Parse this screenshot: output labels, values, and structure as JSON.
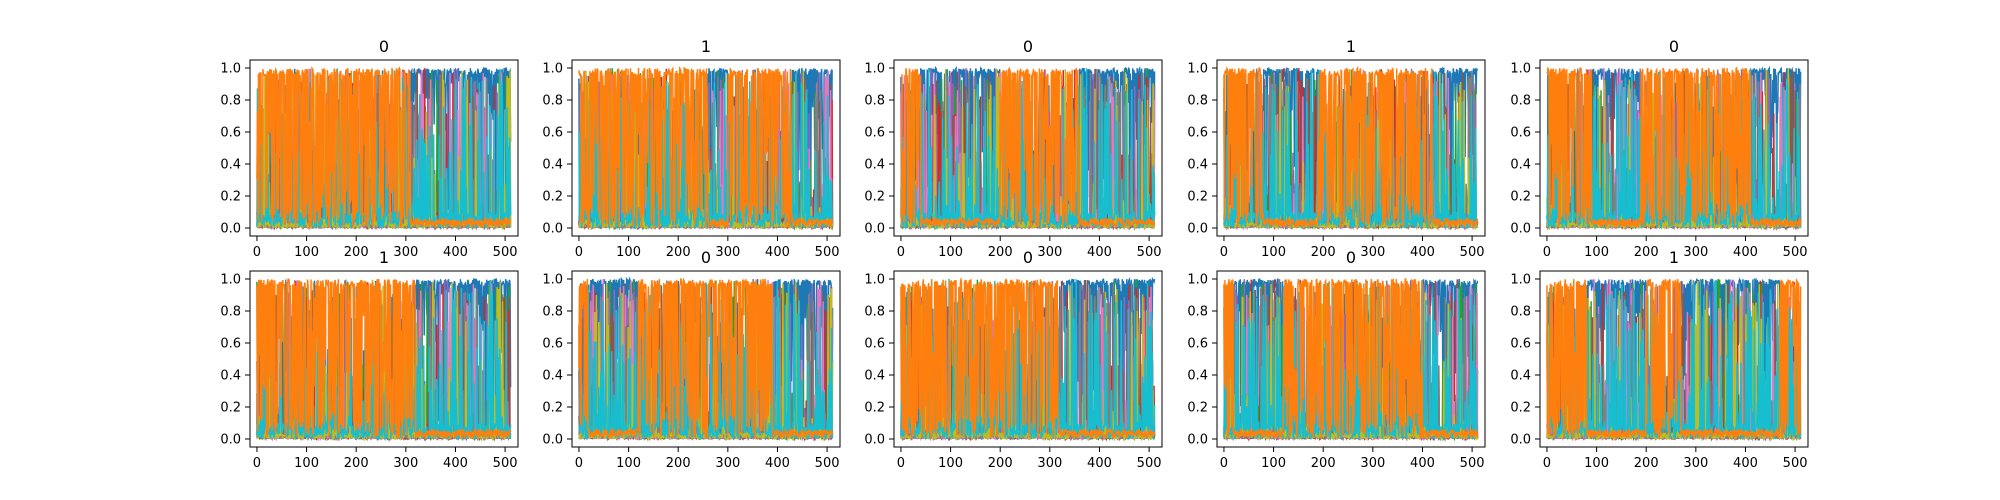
{
  "chart_data": {
    "type": "line",
    "grid": false,
    "subplot_grid": {
      "rows": 2,
      "cols": 5
    },
    "xlim": [
      -14,
      526
    ],
    "ylim": [
      -0.05,
      1.05
    ],
    "xticks": [
      0,
      100,
      200,
      300,
      400,
      500
    ],
    "yticks": [
      0.0,
      0.2,
      0.4,
      0.6,
      0.8,
      1.0
    ],
    "xtick_labels": [
      "0",
      "100",
      "200",
      "300",
      "400",
      "500"
    ],
    "ytick_labels": [
      "0.0",
      "0.2",
      "0.4",
      "0.6",
      "0.8",
      "1.0"
    ],
    "colors": {
      "class_0": "#1f77b4",
      "class_1": "#ff7f0e",
      "other_classes": [
        "#2ca02c",
        "#d62728",
        "#9467bd",
        "#8c564b",
        "#e377c2",
        "#7f7f7f",
        "#bcbd22",
        "#17becf"
      ]
    },
    "panels": [
      {
        "title": "0",
        "class_1_regions": [
          [
            0,
            310
          ]
        ]
      },
      {
        "title": "1",
        "class_1_regions": [
          [
            0,
            260
          ],
          [
            300,
            430
          ]
        ]
      },
      {
        "title": "0",
        "class_1_regions": [
          [
            0,
            40
          ],
          [
            200,
            360
          ]
        ]
      },
      {
        "title": "1",
        "class_1_regions": [
          [
            0,
            80
          ],
          [
            190,
            420
          ]
        ]
      },
      {
        "title": "0",
        "class_1_regions": [
          [
            0,
            90
          ],
          [
            190,
            410
          ]
        ]
      },
      {
        "title": "1",
        "class_1_regions": [
          [
            0,
            320
          ]
        ]
      },
      {
        "title": "0",
        "class_1_regions": [
          [
            0,
            20
          ],
          [
            120,
            390
          ]
        ]
      },
      {
        "title": "0",
        "class_1_regions": [
          [
            0,
            320
          ]
        ]
      },
      {
        "title": "0",
        "class_1_regions": [
          [
            0,
            20
          ],
          [
            120,
            400
          ]
        ]
      },
      {
        "title": "1",
        "class_1_regions": [
          [
            0,
            80
          ],
          [
            200,
            270
          ],
          [
            470,
            512
          ]
        ]
      }
    ]
  }
}
